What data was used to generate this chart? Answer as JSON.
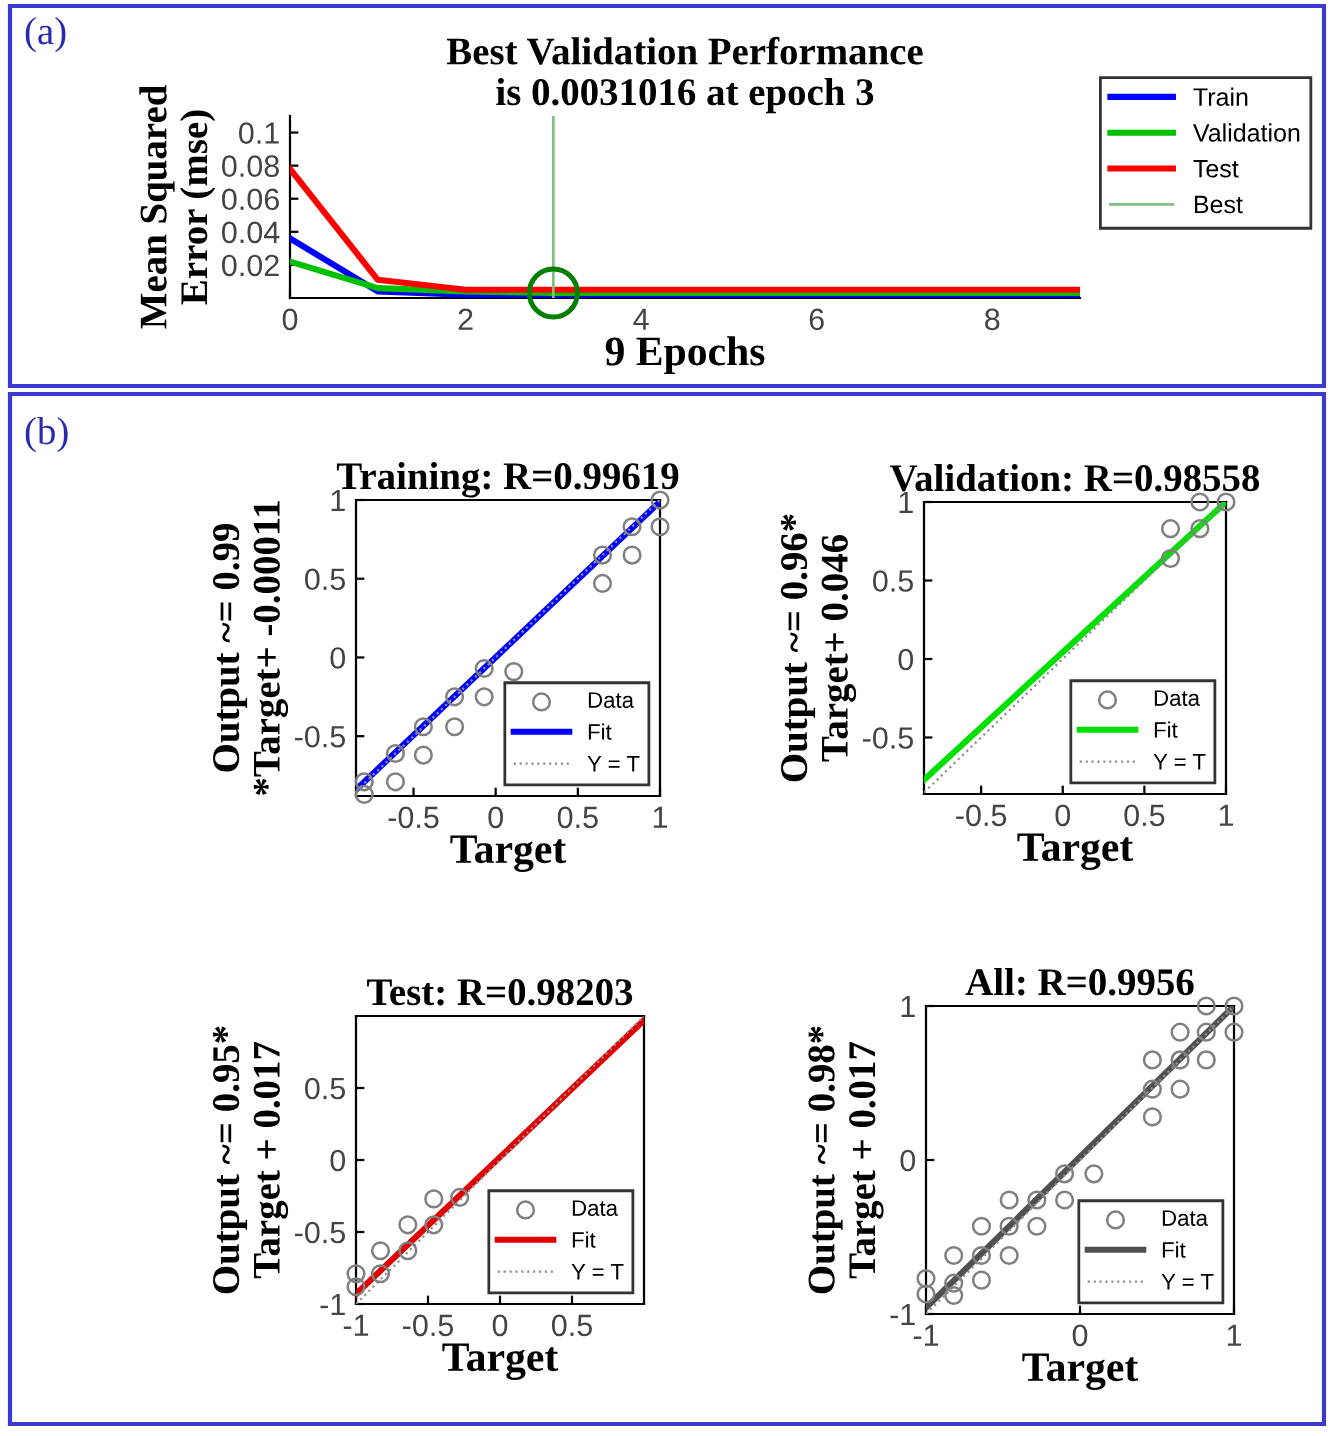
{
  "chart_data": [
    {
      "type": "line",
      "title": "Best Validation Performance\nis 0.0031016 at epoch 3",
      "xlabel": "9 Epochs",
      "ylabel": "Mean Squared\nError (mse)",
      "annotations": [
        "(a)"
      ],
      "series": [
        {
          "name": "Train",
          "color": "#0000ff",
          "x": [
            0,
            1,
            2,
            3,
            4,
            5,
            6,
            7,
            8,
            9
          ],
          "values": [
            0.036,
            0.004,
            0.002,
            0.002,
            0.002,
            0.002,
            0.002,
            0.002,
            0.002,
            0.002
          ]
        },
        {
          "name": "Validation",
          "color": "#00c000",
          "x": [
            0,
            1,
            2,
            3,
            4,
            5,
            6,
            7,
            8,
            9
          ],
          "values": [
            0.022,
            0.006,
            0.004,
            0.003,
            0.003,
            0.003,
            0.003,
            0.003,
            0.003,
            0.003
          ]
        },
        {
          "name": "Test",
          "color": "#ff0000",
          "x": [
            0,
            1,
            2,
            3,
            4,
            5,
            6,
            7,
            8,
            9
          ],
          "values": [
            0.078,
            0.011,
            0.005,
            0.005,
            0.005,
            0.005,
            0.005,
            0.005,
            0.005,
            0.005
          ]
        },
        {
          "name": "Best",
          "type": "line",
          "color": "#80c080",
          "line_style": "solid",
          "x": [
            3,
            3
          ],
          "values": [
            0,
            0.11
          ]
        },
        {
          "type": "scatter",
          "color": "#007f00",
          "marker": "circle",
          "x": [
            3
          ],
          "values": [
            0.003
          ]
        }
      ],
      "xlim": [
        0,
        9
      ],
      "ylim": [
        0,
        0.11
      ],
      "xticks": [
        0,
        2,
        4,
        6,
        8
      ],
      "yticks": [
        0.02,
        0.04,
        0.06,
        0.08,
        0.1
      ],
      "legend": "right",
      "grid": false
    },
    {
      "type": "scatter",
      "title": "Training: R=0.99619",
      "xlabel": "Target",
      "ylabel": "Output ~= 0.99\n*Target+ -0.00011",
      "annotations": [
        "(b)"
      ],
      "series": [
        {
          "name": "Data",
          "color": "#808080",
          "marker": "circle",
          "x": [
            -0.8,
            -0.8,
            -0.61,
            -0.61,
            -0.44,
            -0.44,
            -0.25,
            -0.25,
            -0.07,
            -0.07,
            0.11,
            0.65,
            0.65,
            0.83,
            0.83,
            1,
            1
          ],
          "values": [
            -0.87,
            -0.79,
            -0.79,
            -0.61,
            -0.62,
            -0.44,
            -0.44,
            -0.25,
            -0.25,
            -0.07,
            -0.09,
            0.47,
            0.65,
            0.65,
            0.83,
            0.83,
            1
          ]
        },
        {
          "name": "Fit",
          "type": "line",
          "color": "#0000ff",
          "line_style": "solid",
          "x": [
            -0.85,
            1
          ],
          "values": [
            -0.84,
            0.99
          ]
        },
        {
          "name": "Y = T",
          "type": "line",
          "color": "#909090",
          "line_style": "dotted",
          "x": [
            -0.85,
            1
          ],
          "values": [
            -0.85,
            1
          ]
        }
      ],
      "xlim": [
        -0.85,
        1
      ],
      "ylim": [
        -0.88,
        1
      ],
      "xticks": [
        -0.5,
        0,
        0.5,
        1
      ],
      "yticks": [
        -0.5,
        0,
        0.5,
        1
      ],
      "legend": "bottom right",
      "grid": false
    },
    {
      "type": "scatter",
      "title": "Validation: R=0.98558",
      "xlabel": "Target",
      "ylabel": "Output ~= 0.96*\nTarget+ 0.046",
      "series": [
        {
          "name": "Data",
          "color": "#808080",
          "marker": "circle",
          "x": [
            0.84,
            1,
            0.66,
            0.84,
            0.66
          ],
          "values": [
            1,
            1,
            0.83,
            0.83,
            0.64
          ]
        },
        {
          "name": "Fit",
          "type": "line",
          "color": "#00e000",
          "line_style": "solid",
          "x": [
            -0.85,
            1
          ],
          "values": [
            -0.77,
            1.0
          ]
        },
        {
          "name": "Y = T",
          "type": "line",
          "color": "#909090",
          "line_style": "dotted",
          "x": [
            -0.85,
            1
          ],
          "values": [
            -0.85,
            1
          ]
        }
      ],
      "xlim": [
        -0.85,
        1
      ],
      "ylim": [
        -0.86,
        1
      ],
      "xticks": [
        -0.5,
        0,
        0.5,
        1
      ],
      "yticks": [
        -0.5,
        0,
        0.5,
        1
      ],
      "legend": "bottom right",
      "grid": false
    },
    {
      "type": "scatter",
      "title": "Test: R=0.98203",
      "xlabel": "Target",
      "ylabel": "Output ~= 0.95*\nTarget + 0.017",
      "series": [
        {
          "name": "Data",
          "color": "#808080",
          "marker": "circle",
          "x": [
            -1,
            -1,
            -0.83,
            -0.83,
            -0.64,
            -0.64,
            -0.46,
            -0.46,
            -0.28
          ],
          "values": [
            -0.79,
            -0.88,
            -0.63,
            -0.79,
            -0.45,
            -0.63,
            -0.27,
            -0.45,
            -0.26
          ]
        },
        {
          "name": "Fit",
          "type": "line",
          "color": "#e00000",
          "line_style": "solid",
          "x": [
            -1,
            1
          ],
          "values": [
            -0.93,
            0.97
          ]
        },
        {
          "name": "Y = T",
          "type": "line",
          "color": "#909090",
          "line_style": "dotted",
          "x": [
            -1,
            1
          ],
          "values": [
            -1,
            1
          ]
        }
      ],
      "xlim": [
        -1,
        1
      ],
      "ylim": [
        -1,
        1
      ],
      "xticks": [
        -1,
        -0.5,
        0,
        0.5
      ],
      "yticks": [
        -1,
        -0.5,
        0,
        0.5
      ],
      "legend": "bottom right",
      "grid": false
    },
    {
      "type": "scatter",
      "title": "All: R=0.9956",
      "xlabel": "Target",
      "ylabel": "Output ~= 0.98*\nTarget + 0.017",
      "series": [
        {
          "name": "Data",
          "color": "#808080",
          "marker": "circle",
          "x": [
            -1,
            -1,
            -0.82,
            -0.82,
            -0.82,
            -0.64,
            -0.64,
            -0.64,
            -0.46,
            -0.46,
            -0.46,
            -0.28,
            -0.28,
            -0.1,
            -0.1,
            0.09,
            0.47,
            0.47,
            0.47,
            0.65,
            0.65,
            0.65,
            0.82,
            0.82,
            0.82,
            1,
            1
          ],
          "values": [
            -0.77,
            -0.87,
            -0.8,
            -0.88,
            -0.62,
            -0.78,
            -0.62,
            -0.43,
            -0.62,
            -0.43,
            -0.26,
            -0.43,
            -0.26,
            -0.26,
            -0.09,
            -0.09,
            0.28,
            0.46,
            0.65,
            0.46,
            0.65,
            0.83,
            0.65,
            0.83,
            1,
            0.83,
            1
          ]
        },
        {
          "name": "Fit",
          "type": "line",
          "color": "#505050",
          "line_style": "solid",
          "x": [
            -1,
            1
          ],
          "values": [
            -0.96,
            1.0
          ]
        },
        {
          "name": "Y = T",
          "type": "line",
          "color": "#909090",
          "line_style": "dotted",
          "x": [
            -1,
            1
          ],
          "values": [
            -1,
            1
          ]
        }
      ],
      "xlim": [
        -1,
        1
      ],
      "ylim": [
        -1,
        1
      ],
      "xticks": [
        -1,
        0,
        1
      ],
      "yticks": [
        -1,
        0,
        1
      ],
      "legend": "bottom right",
      "grid": false
    }
  ]
}
